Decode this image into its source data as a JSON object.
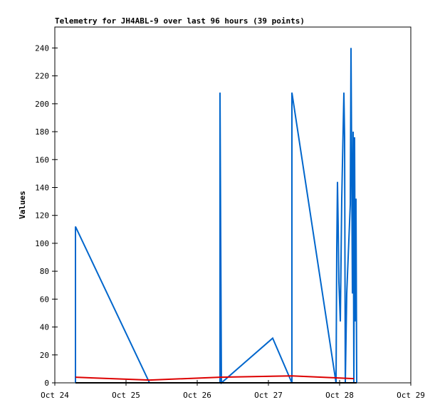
{
  "chart_data": {
    "type": "line",
    "title": "Telemetry for JH4ABL-9 over last 96 hours (39 points)",
    "y_label": "Values",
    "xlim": [
      24,
      29
    ],
    "xticks": [
      {
        "value": 24,
        "label": "Oct 24"
      },
      {
        "value": 25,
        "label": "Oct 25"
      },
      {
        "value": 26,
        "label": "Oct 26"
      },
      {
        "value": 27,
        "label": "Oct 27"
      },
      {
        "value": 28,
        "label": "Oct 28"
      },
      {
        "value": 29,
        "label": "Oct 29"
      }
    ],
    "ylim": [
      0,
      255
    ],
    "yticks": [
      0,
      20,
      40,
      60,
      80,
      100,
      120,
      140,
      160,
      180,
      200,
      220,
      240
    ],
    "grid": false,
    "series": [
      {
        "color": "#0066cc",
        "x": [
          24.29,
          24.29,
          25.33,
          26.32,
          26.32,
          26.33,
          26.34,
          27.06,
          27.33,
          27.33,
          27.95,
          27.96,
          27.97,
          27.98,
          27.99,
          28.01,
          28.03,
          28.06,
          28.07,
          28.08,
          28.1,
          28.15,
          28.16,
          28.18,
          28.19,
          28.2,
          28.21,
          28.22,
          28.23,
          28.24
        ],
        "values": [
          0,
          112,
          0,
          0,
          208,
          104,
          0,
          32,
          0,
          208,
          0,
          96,
          144,
          112,
          72,
          44,
          132,
          208,
          176,
          0,
          64,
          128,
          240,
          64,
          180,
          0,
          176,
          44,
          132,
          0
        ]
      },
      {
        "color": "#dd0000",
        "x": [
          24.29,
          25.33,
          26.32,
          27.33,
          28.2
        ],
        "values": [
          4,
          2,
          4,
          5,
          3
        ]
      },
      {
        "color": "#000000",
        "x": [
          24.29,
          28.24
        ],
        "values": [
          0,
          0
        ]
      }
    ]
  }
}
